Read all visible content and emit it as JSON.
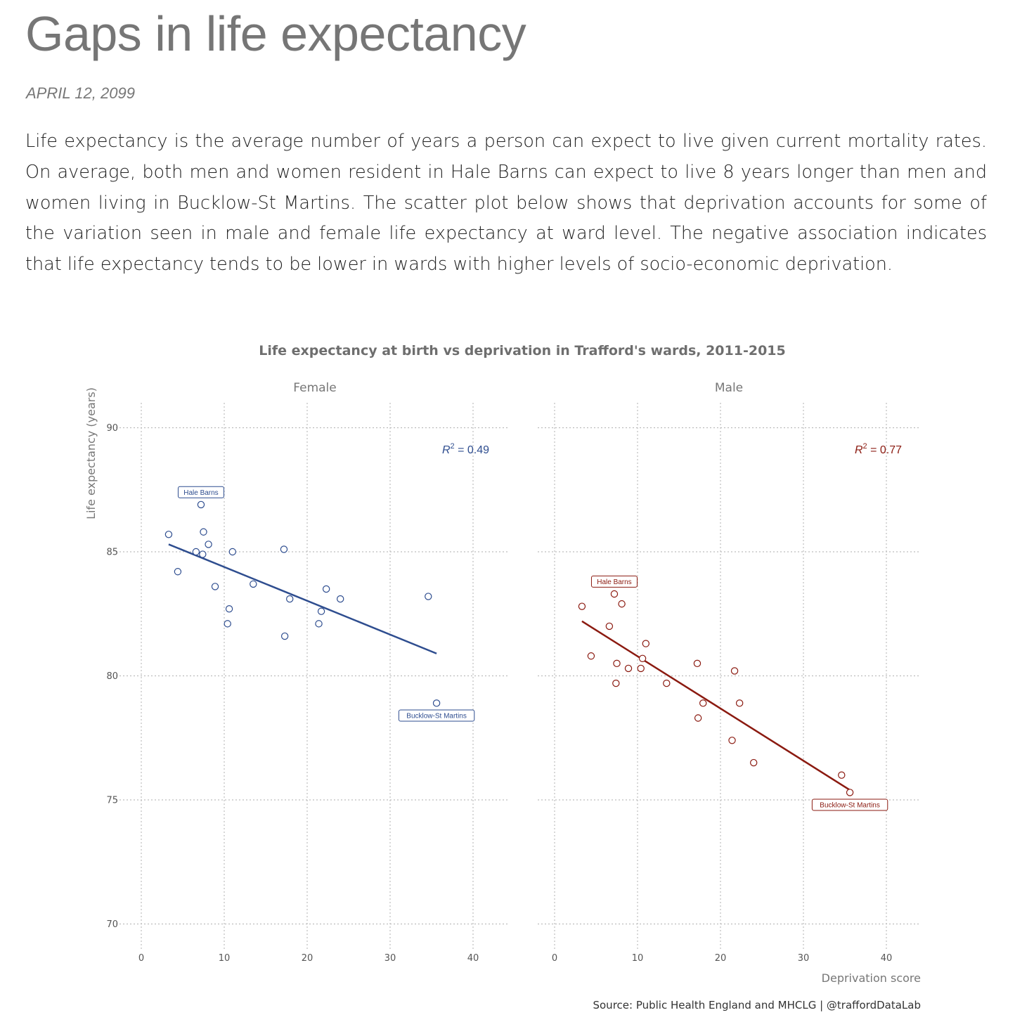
{
  "page": {
    "title": "Gaps in life expectancy",
    "date": "APRIL 12, 2099",
    "intro": "Life expectancy is the average number of years a person can expect to live given current mortality rates. On average, both men and women resident in Hale Barns can expect to live 8 years longer than men and women living in Bucklow-St Martins. The scatter plot below shows that deprivation accounts for some of the variation seen in male and female life expectancy at ward level. The negative association indicates that life expectancy tends to be lower in wards with higher levels of socio-economic deprivation."
  },
  "chart_data": {
    "type": "scatter",
    "title": "Life expectancy at birth vs deprivation in Trafford's wards, 2011-2015",
    "xlabel": "Deprivation score",
    "ylabel": "Life expectancy (years)",
    "xlim": [
      -3,
      44
    ],
    "ylim": [
      69,
      91
    ],
    "xticks": [
      0,
      10,
      20,
      30,
      40
    ],
    "yticks": [
      70,
      75,
      80,
      85,
      90
    ],
    "grid": "dotted",
    "caption": "Source: Public Health England and MHCLG | @traffordDataLab",
    "panels": [
      {
        "name": "Female",
        "color": "#2e4d8f",
        "r2_label": "= 0.49",
        "trend": {
          "x": [
            3.3,
            35.6
          ],
          "y": [
            85.3,
            80.9
          ]
        },
        "points": [
          {
            "x": 3.3,
            "y": 85.7
          },
          {
            "x": 4.4,
            "y": 84.2
          },
          {
            "x": 6.6,
            "y": 85.0
          },
          {
            "x": 7.2,
            "y": 86.9
          },
          {
            "x": 7.5,
            "y": 85.8
          },
          {
            "x": 7.4,
            "y": 84.9
          },
          {
            "x": 8.1,
            "y": 85.3
          },
          {
            "x": 8.9,
            "y": 83.6
          },
          {
            "x": 10.4,
            "y": 82.1
          },
          {
            "x": 10.6,
            "y": 82.7
          },
          {
            "x": 11.0,
            "y": 85.0
          },
          {
            "x": 13.5,
            "y": 83.7
          },
          {
            "x": 17.2,
            "y": 85.1
          },
          {
            "x": 17.3,
            "y": 81.6
          },
          {
            "x": 17.9,
            "y": 83.1
          },
          {
            "x": 21.4,
            "y": 82.1
          },
          {
            "x": 21.7,
            "y": 82.6
          },
          {
            "x": 22.3,
            "y": 83.5
          },
          {
            "x": 24.0,
            "y": 83.1
          },
          {
            "x": 34.6,
            "y": 83.2
          },
          {
            "x": 35.6,
            "y": 78.9
          }
        ],
        "labels": [
          {
            "text": "Hale Barns",
            "x": 7.2,
            "y": 87.4
          },
          {
            "text": "Bucklow-St Martins",
            "x": 35.6,
            "y": 78.4
          }
        ]
      },
      {
        "name": "Male",
        "color": "#8b1a10",
        "r2_label": "= 0.77",
        "trend": {
          "x": [
            3.3,
            35.6
          ],
          "y": [
            82.2,
            75.4
          ]
        },
        "points": [
          {
            "x": 3.3,
            "y": 82.8
          },
          {
            "x": 4.4,
            "y": 80.8
          },
          {
            "x": 6.6,
            "y": 82.0
          },
          {
            "x": 7.2,
            "y": 83.3
          },
          {
            "x": 7.5,
            "y": 80.5
          },
          {
            "x": 7.4,
            "y": 79.7
          },
          {
            "x": 8.1,
            "y": 82.9
          },
          {
            "x": 8.9,
            "y": 80.3
          },
          {
            "x": 10.4,
            "y": 80.3
          },
          {
            "x": 10.6,
            "y": 80.7
          },
          {
            "x": 11.0,
            "y": 81.3
          },
          {
            "x": 13.5,
            "y": 79.7
          },
          {
            "x": 17.2,
            "y": 80.5
          },
          {
            "x": 17.3,
            "y": 78.3
          },
          {
            "x": 17.9,
            "y": 78.9
          },
          {
            "x": 21.4,
            "y": 77.4
          },
          {
            "x": 21.7,
            "y": 80.2
          },
          {
            "x": 22.3,
            "y": 78.9
          },
          {
            "x": 24.0,
            "y": 76.5
          },
          {
            "x": 34.6,
            "y": 76.0
          },
          {
            "x": 35.6,
            "y": 75.3
          }
        ],
        "labels": [
          {
            "text": "Hale Barns",
            "x": 7.2,
            "y": 83.8
          },
          {
            "text": "Bucklow-St Martins",
            "x": 35.6,
            "y": 74.8
          }
        ]
      }
    ]
  }
}
